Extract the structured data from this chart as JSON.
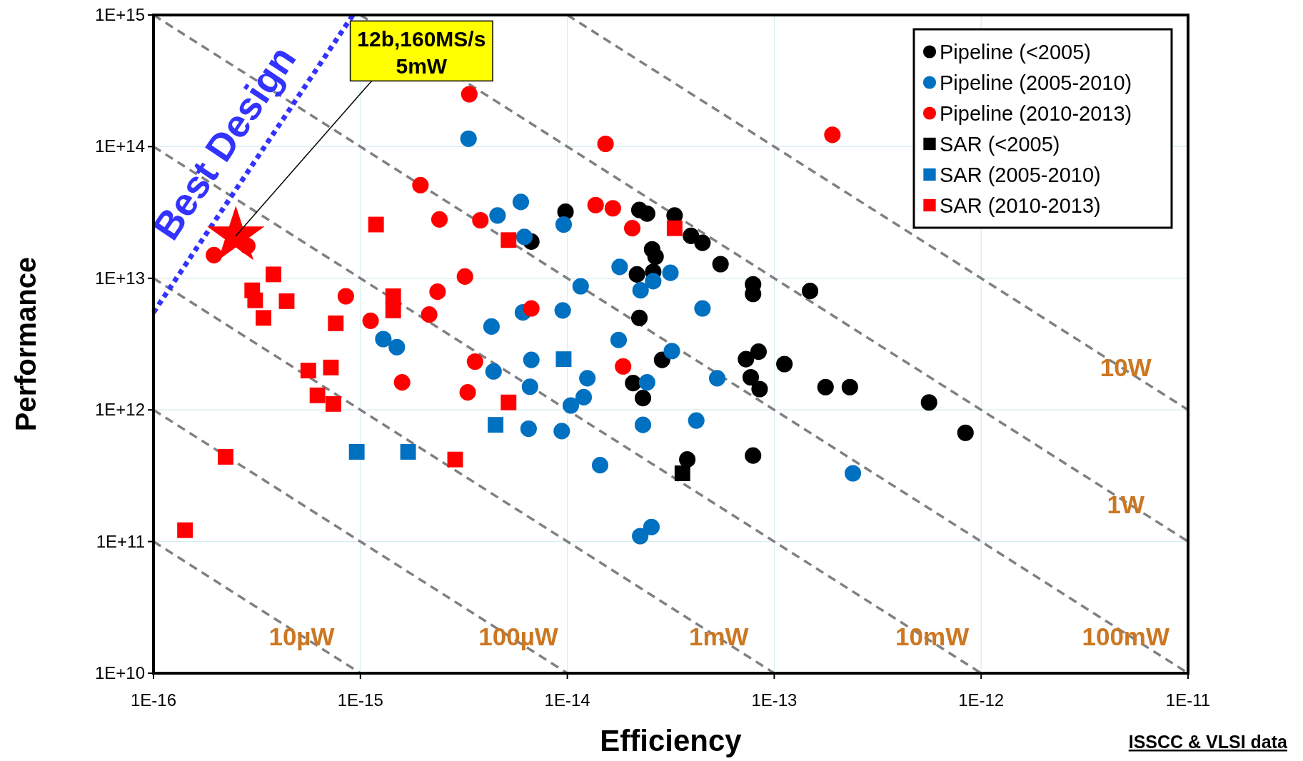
{
  "chart_data": {
    "type": "scatter",
    "xlabel": "Efficiency",
    "ylabel": "Performance",
    "log": "xy",
    "grid": true,
    "legend": "top right",
    "xlim": [
      1e-16,
      1e-11
    ],
    "ylim": [
      10000000000.0,
      1000000000000000.0
    ],
    "xticks": [
      {
        "value": 1e-16,
        "label": "1E-16"
      },
      {
        "value": 1e-15,
        "label": "1E-15"
      },
      {
        "value": 1e-14,
        "label": "1E-14"
      },
      {
        "value": 1e-13,
        "label": "1E-13"
      },
      {
        "value": 1e-12,
        "label": "1E-12"
      },
      {
        "value": 1e-11,
        "label": "1E-11"
      }
    ],
    "yticks": [
      {
        "value": 10000000000.0,
        "label": "1E+10"
      },
      {
        "value": 100000000000.0,
        "label": "1E+11"
      },
      {
        "value": 1000000000000.0,
        "label": "1E+12"
      },
      {
        "value": 10000000000000.0,
        "label": "1E+13"
      },
      {
        "value": 100000000000000.0,
        "label": "1E+14"
      },
      {
        "value": 1000000000000000.0,
        "label": "1E+15"
      }
    ],
    "series": [
      {
        "type": "line",
        "color": "#808080",
        "line_style": "dashed",
        "x": [
          1e-16,
          1e-15
        ],
        "values": [
          100000000000.0,
          10000000000.0
        ]
      },
      {
        "type": "line",
        "color": "#808080",
        "line_style": "dashed",
        "x": [
          1e-16,
          1e-14
        ],
        "values": [
          1000000000000.0,
          10000000000.0
        ]
      },
      {
        "type": "line",
        "color": "#808080",
        "line_style": "dashed",
        "x": [
          1e-16,
          1e-13
        ],
        "values": [
          10000000000000.0,
          10000000000.0
        ]
      },
      {
        "type": "line",
        "color": "#808080",
        "line_style": "dashed",
        "x": [
          1e-16,
          1e-12
        ],
        "values": [
          100000000000000.0,
          10000000000.0
        ]
      },
      {
        "type": "line",
        "color": "#808080",
        "line_style": "dashed",
        "x": [
          1e-16,
          1e-11
        ],
        "values": [
          1000000000000000.0,
          10000000000.0
        ]
      },
      {
        "type": "line",
        "color": "#808080",
        "line_style": "dashed",
        "x": [
          1e-15,
          1e-11
        ],
        "values": [
          1000000000000000.0,
          100000000000.0
        ]
      },
      {
        "type": "line",
        "color": "#808080",
        "line_style": "dashed",
        "x": [
          1e-14,
          1e-11
        ],
        "values": [
          1000000000000000.0,
          1000000000000.0
        ]
      },
      {
        "type": "line",
        "name": "Best Design",
        "color": "#3333ff",
        "line_style": "dotted",
        "x": [
          1e-16,
          9.2e-16
        ],
        "values": [
          5500000000000.0,
          1000000000000000.0
        ]
      },
      {
        "name": "Pipeline (<2005)",
        "color": "#000000",
        "marker": "circle",
        "x": [
          9.8e-15,
          2.23e-14,
          2.43e-14,
          3.3e-14,
          6.7e-15,
          3.96e-14,
          4.5e-14,
          2.57e-14,
          2.67e-14,
          5.5e-14,
          2.17e-14,
          2.6e-14,
          7.9e-14,
          7.9e-14,
          1.49e-13,
          2.23e-14,
          2.87e-14,
          7.3e-14,
          8.4e-14,
          1.12e-13,
          7.7e-14,
          8.5e-14,
          2.08e-14,
          2.32e-14,
          1.77e-13,
          2.32e-13,
          5.6e-13,
          8.4e-13,
          7.9e-14,
          3.8e-14
        ],
        "values": [
          32000000000000.0,
          33000000000000.0,
          31000000000000.0,
          30000000000000.0,
          19000000000000.0,
          21000000000000.0,
          18600000000000.0,
          16600000000000.0,
          14600000000000.0,
          12800000000000.0,
          10700000000000.0,
          11200000000000.0,
          9000000000000.0,
          7600000000000.0,
          8000000000000.0,
          5000000000000.0,
          2400000000000.0,
          2430000000000.0,
          2770000000000.0,
          2230000000000.0,
          1770000000000.0,
          1440000000000.0,
          1600000000000.0,
          1230000000000.0,
          1490000000000.0,
          1490000000000.0,
          1140000000000.0,
          670000000000.0,
          450000000000.0,
          420000000000.0
        ]
      },
      {
        "name": "Pipeline (2005-2010)",
        "color": "#0070c0",
        "marker": "circle",
        "x": [
          3.33e-15,
          5.96e-15,
          4.6e-15,
          6.2e-15,
          9.6e-15,
          1.79e-14,
          2.26e-14,
          2.6e-14,
          3.15e-14,
          1.16e-14,
          6.1e-15,
          9.5e-15,
          4.5e-14,
          4.3e-15,
          1.77e-14,
          3.2e-14,
          1.29e-15,
          1.5e-15,
          6.7e-15,
          4.4e-15,
          1.25e-14,
          6.6e-15,
          2.43e-14,
          5.3e-14,
          1.2e-14,
          1.04e-14,
          6.5e-15,
          9.4e-15,
          2.32e-14,
          4.2e-14,
          1.44e-14,
          2.4e-13,
          2.55e-14,
          2.25e-14
        ],
        "values": [
          115000000000000.0,
          38000000000000.0,
          30000000000000.0,
          20600000000000.0,
          25600000000000.0,
          12200000000000.0,
          8100000000000.0,
          9500000000000.0,
          11000000000000.0,
          8700000000000.0,
          5500000000000.0,
          5700000000000.0,
          5900000000000.0,
          4300000000000.0,
          3400000000000.0,
          2800000000000.0,
          3450000000000.0,
          3000000000000.0,
          2400000000000.0,
          1960000000000.0,
          1740000000000.0,
          1500000000000.0,
          1620000000000.0,
          1740000000000.0,
          1250000000000.0,
          1080000000000.0,
          720000000000.0,
          690000000000.0,
          770000000000.0,
          830000000000.0,
          380000000000.0,
          330000000000.0,
          129000000000.0,
          110000000000.0
        ]
      },
      {
        "name": "Pipeline (2010-2013)",
        "color": "#ff0000",
        "marker": "circle",
        "x": [
          3.36e-15,
          1.53e-14,
          1.91e-13,
          1.95e-15,
          1.37e-14,
          1.66e-14,
          2.41e-15,
          3.8e-15,
          2.06e-14,
          1.96e-16,
          2.84e-16,
          3.2e-15,
          8.5e-16,
          2.36e-15,
          1.12e-15,
          2.15e-15,
          6.7e-15,
          3.58e-15,
          1.86e-14,
          1.59e-15,
          3.3e-15
        ],
        "values": [
          250000000000000.0,
          105000000000000.0,
          123000000000000.0,
          51000000000000.0,
          36000000000000.0,
          34000000000000.0,
          28000000000000.0,
          27600000000000.0,
          24000000000000.0,
          15000000000000.0,
          17600000000000.0,
          10300000000000.0,
          7300000000000.0,
          7900000000000.0,
          4750000000000.0,
          5300000000000.0,
          5900000000000.0,
          2330000000000.0,
          2140000000000.0,
          1620000000000.0,
          1360000000000.0
        ]
      },
      {
        "name": "SAR (<2005)",
        "color": "#000000",
        "marker": "square",
        "x": [
          3.6e-14
        ],
        "values": [
          330000000000.0
        ]
      },
      {
        "name": "SAR (2005-2010)",
        "color": "#0070c0",
        "marker": "square",
        "x": [
          9.6e-15,
          4.5e-15,
          9.6e-16,
          1.7e-15
        ],
        "values": [
          2430000000000.0,
          770000000000.0,
          480000000000.0,
          480000000000.0
        ]
      },
      {
        "name": "SAR (2010-2013)",
        "color": "#ff0000",
        "marker": "square",
        "x": [
          1.19e-15,
          5.2e-15,
          3.3e-14,
          3.8e-16,
          3e-16,
          3.1e-16,
          4.4e-16,
          1.44e-15,
          1.44e-15,
          3.4e-16,
          7.6e-16,
          5.6e-16,
          7.2e-16,
          6.2e-16,
          7.4e-16,
          5.2e-15,
          2.87e-15,
          2.23e-16,
          1.42e-16
        ],
        "values": [
          25600000000000.0,
          19500000000000.0,
          24000000000000.0,
          10700000000000.0,
          8100000000000.0,
          6800000000000.0,
          6700000000000.0,
          7300000000000.0,
          5700000000000.0,
          5000000000000.0,
          4550000000000.0,
          1990000000000.0,
          2100000000000.0,
          1290000000000.0,
          1110000000000.0,
          1140000000000.0,
          420000000000.0,
          440000000000.0,
          122000000000.0
        ]
      },
      {
        "color": "#ff0000",
        "marker": "star",
        "x": [
          2.5e-16
        ],
        "values": [
          21000000000000.0
        ]
      }
    ],
    "annotations": [
      {
        "text": "12b,160MS/s\n5mW",
        "x": 2.5e-16,
        "y": 21000000000000.0
      },
      {
        "text": "10µW",
        "x": 5.2e-16,
        "y": 19000000000.0
      },
      {
        "text": "100µW",
        "x": 5.8e-15,
        "y": 19000000000.0
      },
      {
        "text": "1mW",
        "x": 5.4e-14,
        "y": 19000000000.0
      },
      {
        "text": "10mW",
        "x": 5.8e-13,
        "y": 19000000000.0
      },
      {
        "text": "100mW",
        "x": 5e-12,
        "y": 19000000000.0
      },
      {
        "text": "1W",
        "x": 5e-12,
        "y": 190000000000.0
      },
      {
        "text": "10W",
        "x": 5e-12,
        "y": 2100000000000.0
      },
      "ISSCC & VLSI data"
    ]
  }
}
